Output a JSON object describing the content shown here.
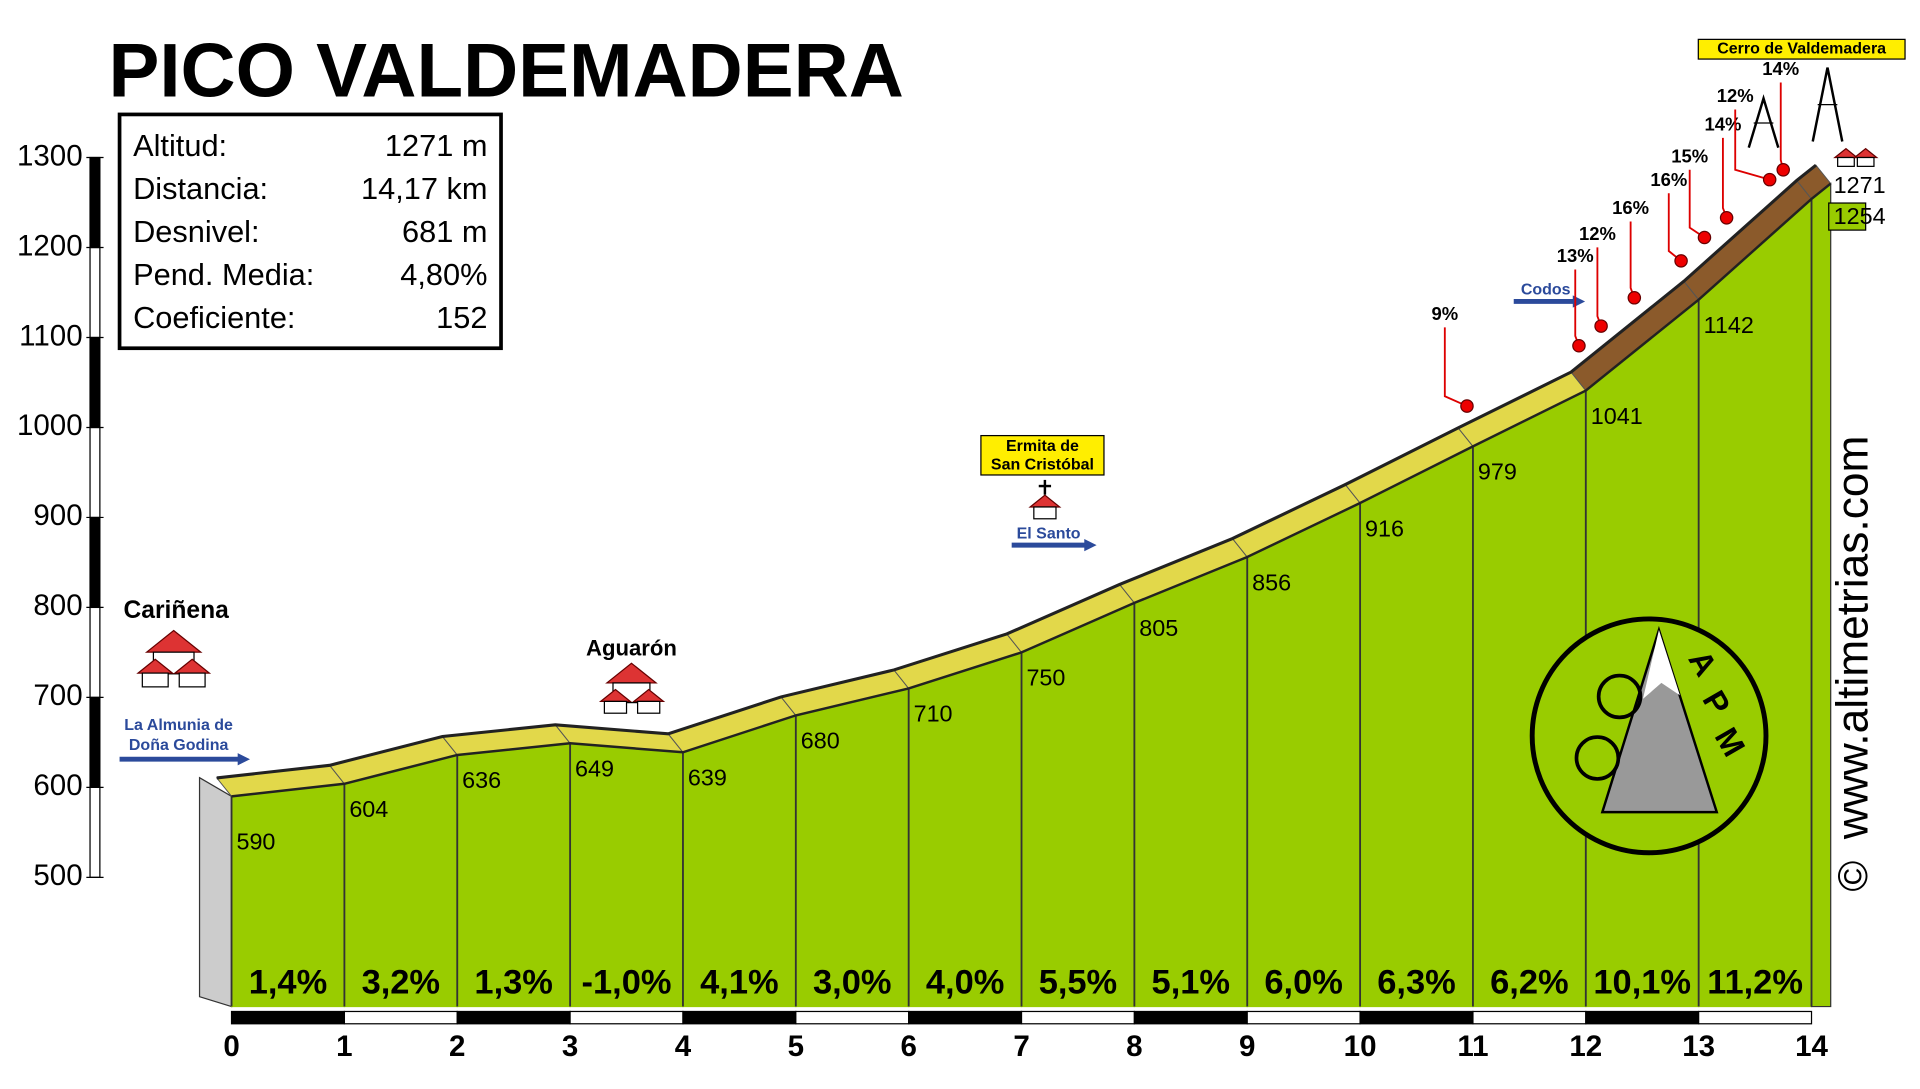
{
  "chart_data": {
    "type": "profile",
    "title": "PICO VALDEMADERA",
    "x": [
      0,
      1,
      2,
      3,
      4,
      5,
      6,
      7,
      8,
      9,
      10,
      11,
      12,
      13,
      14,
      14.17
    ],
    "values": [
      590,
      604,
      636,
      649,
      639,
      680,
      710,
      750,
      805,
      856,
      916,
      979,
      1041,
      1142,
      1254,
      1271
    ],
    "xlim": [
      0,
      14
    ],
    "xticks": [
      0,
      1,
      2,
      3,
      4,
      5,
      6,
      7,
      8,
      9,
      10,
      11,
      12,
      13,
      14
    ],
    "ylim": [
      500,
      1300
    ],
    "yticks": [
      500,
      600,
      700,
      800,
      900,
      1000,
      1100,
      1200,
      1300
    ],
    "segments": {
      "values": [
        1.4,
        3.2,
        1.3,
        -1.0,
        4.1,
        3.0,
        4.0,
        5.5,
        5.1,
        6.0,
        6.3,
        6.2,
        10.1,
        11.2
      ],
      "value_labels": [
        "1,4%",
        "3,2%",
        "1,3%",
        "-1,0%",
        "4,1%",
        "3,0%",
        "4,0%",
        "5,5%",
        "5,1%",
        "6,0%",
        "6,3%",
        "6,2%",
        "10,1%",
        "11,2%"
      ]
    },
    "colors": {
      "ground": "#99cc00",
      "road": "#e2d84a",
      "steep_road": "#8b5a2b",
      "side": "#cccccc"
    },
    "annotations": [
      "Cariñena",
      "La Almunia de",
      "Doña Godina",
      "Aguarón",
      "Ermita de",
      "San Cristóbal",
      "El Santo",
      "Codos",
      "Cerro de Valdemadera"
    ],
    "steep_labels": [
      "9%",
      "13%",
      "12%",
      "16%",
      "16%",
      "15%",
      "14%",
      "12%",
      "14%"
    ]
  },
  "stats": {
    "rows": [
      [
        "Altitud:",
        "1271 m"
      ],
      [
        "Distancia:",
        "14,17 km"
      ],
      [
        "Desnivel:",
        "681 m"
      ],
      [
        "Pend. Media:",
        "4,80%"
      ],
      [
        "Coeficiente:",
        "152"
      ]
    ]
  },
  "credits": {
    "site": "www.altimetrias.com",
    "copyright": "©",
    "logo": [
      "A",
      "P",
      "M"
    ]
  }
}
